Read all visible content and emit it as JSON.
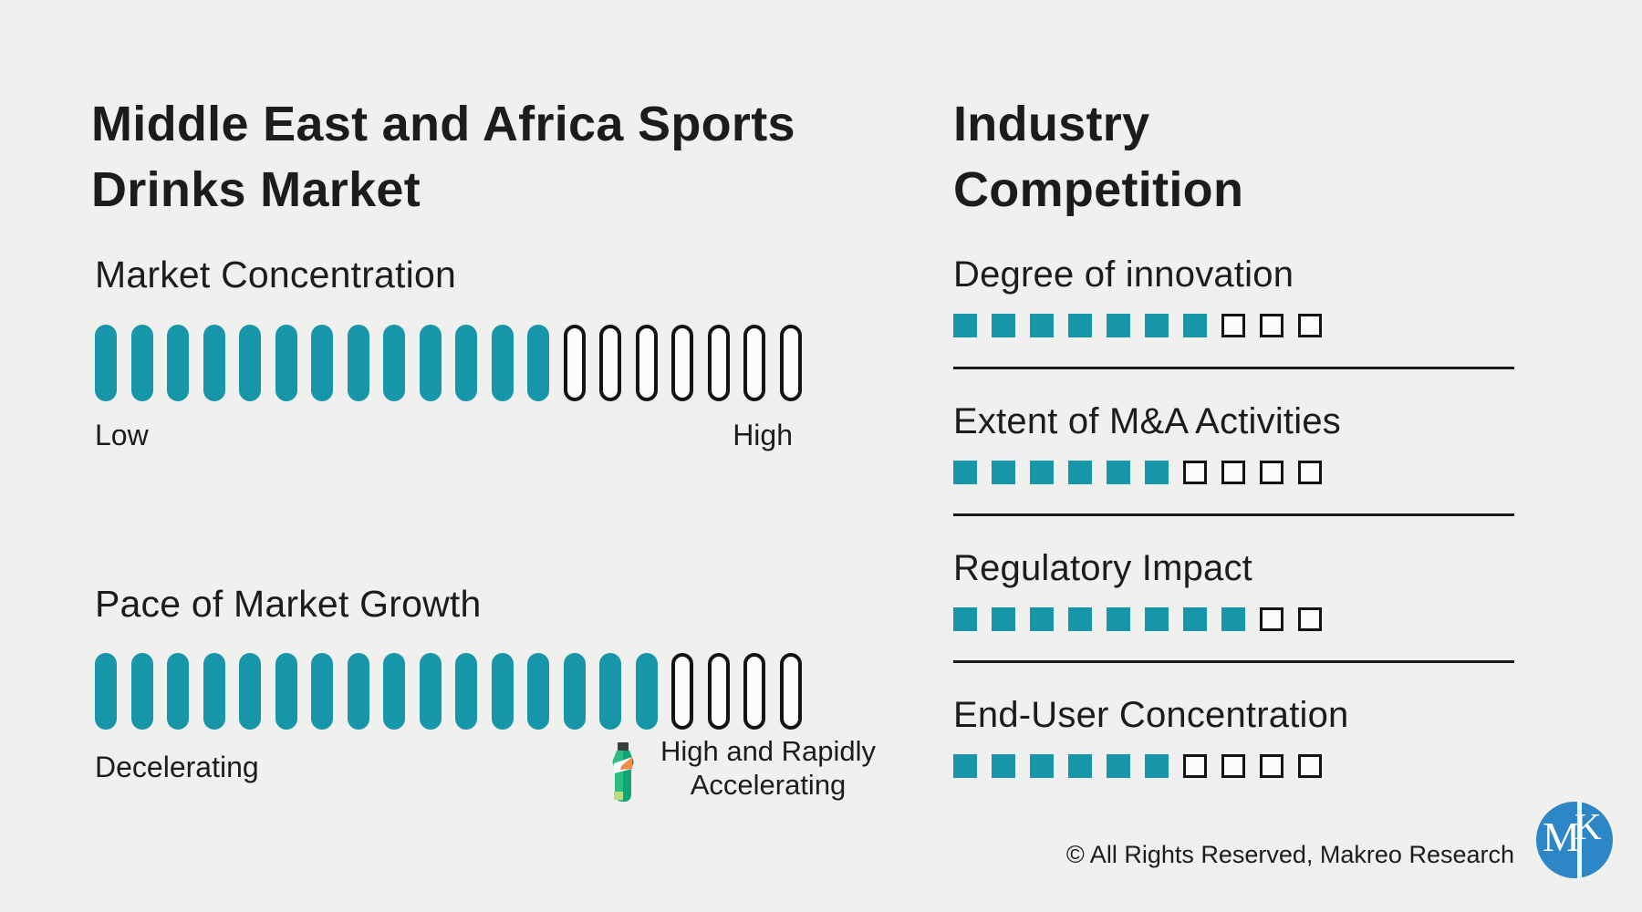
{
  "chart_data": {
    "type": "bar",
    "subtype": "segmented-meter-infographic",
    "left": {
      "title": "Middle East and Africa Sports\nDrinks Market",
      "meters": [
        {
          "label": "Market Concentration",
          "filled": 13,
          "total": 20,
          "min_label": "Low",
          "max_label": "High"
        },
        {
          "label": "Pace of Market Growth",
          "filled": 16,
          "total": 20,
          "min_label": "Decelerating",
          "max_label": "High and Rapidly\nAccelerating"
        }
      ]
    },
    "right": {
      "title": "Industry\nCompetition",
      "meters": [
        {
          "label": "Degree of innovation",
          "filled": 7,
          "total": 10
        },
        {
          "label": "Extent of M&A Activities",
          "filled": 6,
          "total": 10
        },
        {
          "label": "Regulatory Impact",
          "filled": 8,
          "total": 10
        },
        {
          "label": "End-User Concentration",
          "filled": 6,
          "total": 10
        }
      ]
    },
    "legend_position": "none",
    "grid": false
  },
  "footer": {
    "copyright": "© All Rights Reserved, Makreo Research"
  },
  "logo": {
    "m": "M",
    "k": "K"
  },
  "icons": {
    "bottle": "sports-drink-bottle-icon"
  },
  "colors": {
    "accent_teal": "#1795a9",
    "background": "#f0f0ee",
    "text": "#1c1c1c",
    "segment_outline": "#141414",
    "logo_blue": "#2d87c6",
    "bottle_green": "#2ebc83",
    "bottle_dark_green": "#0ea578",
    "bottle_orange": "#f08c4b",
    "bottle_light_green": "#b9dc7f",
    "bottle_cap": "#3a3f42"
  }
}
